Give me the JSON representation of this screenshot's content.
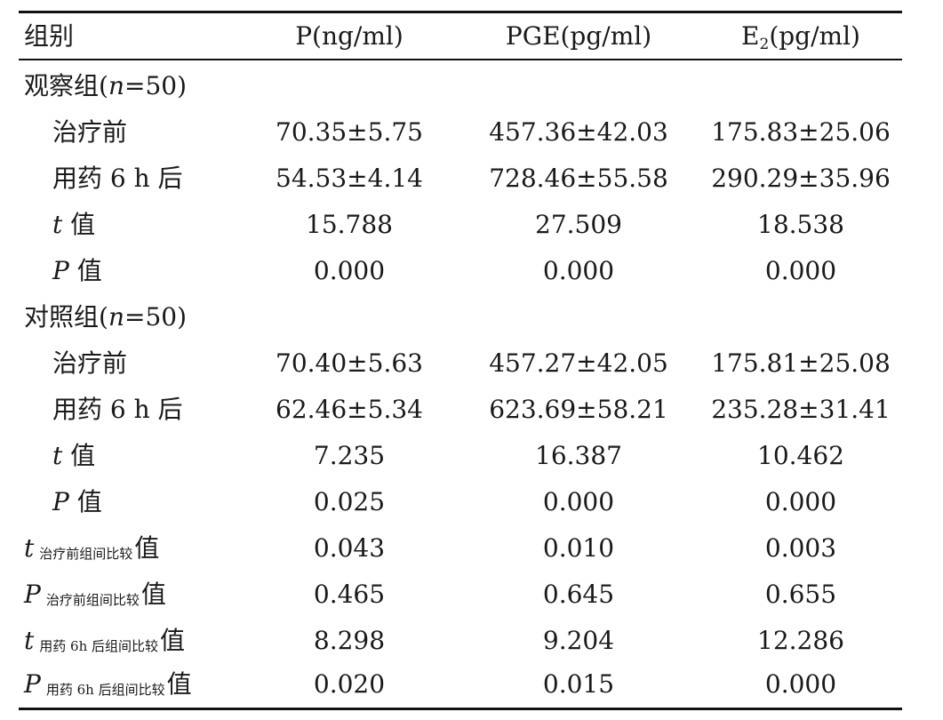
{
  "header": {
    "group": "组别",
    "p_pre": "P",
    "p_unit": "(ng/ml)",
    "pge": "PGE(pg/ml)",
    "e_pre": "E",
    "e_sub": "2",
    "e_unit": "(pg/ml)"
  },
  "groups": [
    {
      "label_pre": "观察组(",
      "label_n": "n",
      "label_post": "=50)",
      "rows": [
        {
          "label": "治疗前",
          "v1": "70.35±5.75",
          "v2": "457.36±42.03",
          "v3": "175.83±25.06"
        },
        {
          "label": "用药 6 h 后",
          "v1": "54.53±4.14",
          "v2": "728.46±55.58",
          "v3": "290.29±35.96"
        },
        {
          "stat": "t",
          "label": "值",
          "v1": "15.788",
          "v2": "27.509",
          "v3": "18.538"
        },
        {
          "stat": "P",
          "label": "值",
          "v1": "0.000",
          "v2": "0.000",
          "v3": "0.000"
        }
      ]
    },
    {
      "label_pre": "对照组(",
      "label_n": "n",
      "label_post": "=50)",
      "rows": [
        {
          "label": "治疗前",
          "v1": "70.40±5.63",
          "v2": "457.27±42.05",
          "v3": "175.81±25.08"
        },
        {
          "label": "用药 6 h 后",
          "v1": "62.46±5.34",
          "v2": "623.69±58.21",
          "v3": "235.28±31.41"
        },
        {
          "stat": "t",
          "label": "值",
          "v1": "7.235",
          "v2": "16.387",
          "v3": "10.462"
        },
        {
          "stat": "P",
          "label": "值",
          "v1": "0.025",
          "v2": "0.000",
          "v3": "0.000"
        }
      ]
    }
  ],
  "comparisons": [
    {
      "stat": "t",
      "sub": "治疗前组间比较",
      "suffix": "值",
      "v1": "0.043",
      "v2": "0.010",
      "v3": "0.003"
    },
    {
      "stat": "P",
      "sub": "治疗前组间比较",
      "suffix": "值",
      "v1": "0.465",
      "v2": "0.645",
      "v3": "0.655"
    },
    {
      "stat": "t",
      "sub": "用药 6h 后组间比较",
      "suffix": "值",
      "v1": "8.298",
      "v2": "9.204",
      "v3": "12.286"
    },
    {
      "stat": "P",
      "sub": "用药 6h 后组间比较",
      "suffix": "值",
      "v1": "0.020",
      "v2": "0.015",
      "v3": "0.000"
    }
  ]
}
